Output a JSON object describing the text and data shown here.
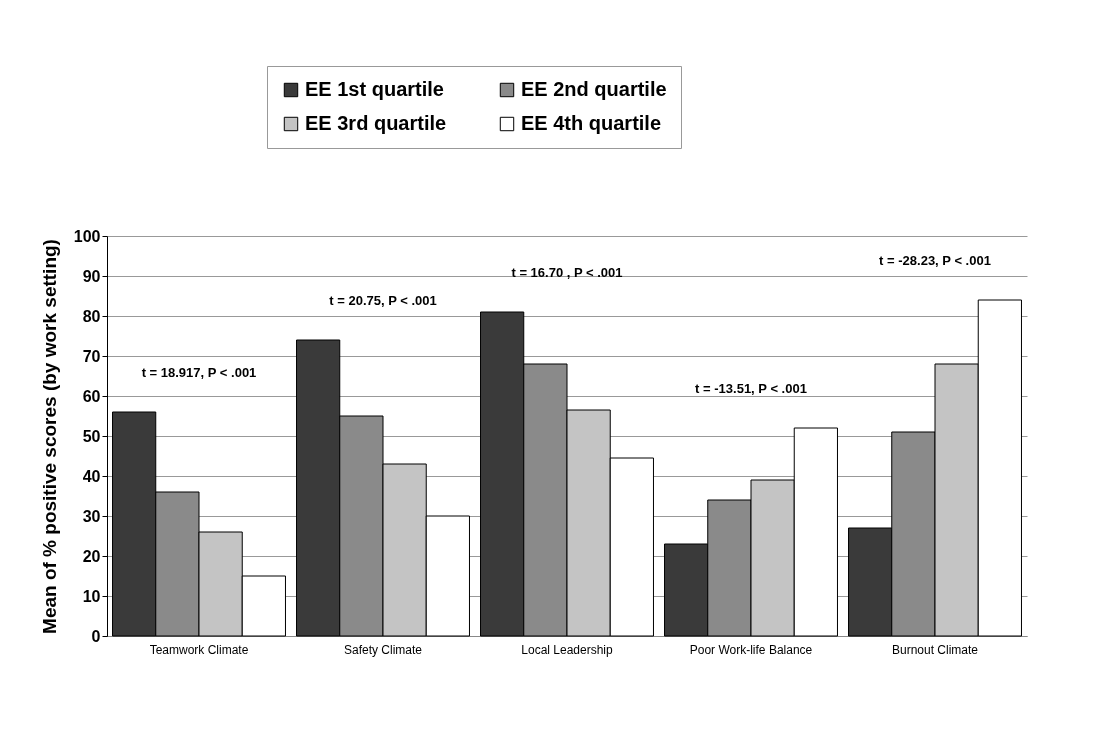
{
  "chart_data": {
    "type": "bar",
    "ylabel": "Mean of % positive scores (by work setting)",
    "categories": [
      "Teamwork Climate",
      "Safety Climate",
      "Local Leadership",
      "Poor Work-life Balance",
      "Burnout Climate"
    ],
    "series": [
      {
        "name": "EE 1st quartile",
        "color": "#3a3a3a",
        "values": [
          56,
          74,
          81,
          23,
          27
        ]
      },
      {
        "name": "EE 2nd quartile",
        "color": "#8a8a8a",
        "values": [
          36,
          55,
          68,
          34,
          51
        ]
      },
      {
        "name": "EE 3rd quartile",
        "color": "#c4c4c4",
        "values": [
          26,
          43,
          56.5,
          39,
          68
        ]
      },
      {
        "name": "EE 4th quartile",
        "color": "#ffffff",
        "values": [
          15,
          30,
          44.5,
          52,
          84
        ]
      }
    ],
    "ylim": [
      0,
      100
    ],
    "yticks": [
      0,
      10,
      20,
      30,
      40,
      50,
      60,
      70,
      80,
      90,
      100
    ],
    "grid": "y",
    "legend": "top",
    "annotations": [
      "t = 18.917, P < .001",
      "t = 20.75, P < .001",
      "t = 16.70 , P < .001",
      "t = -13.51, P < .001",
      "t = -28.23, P < .001"
    ]
  }
}
